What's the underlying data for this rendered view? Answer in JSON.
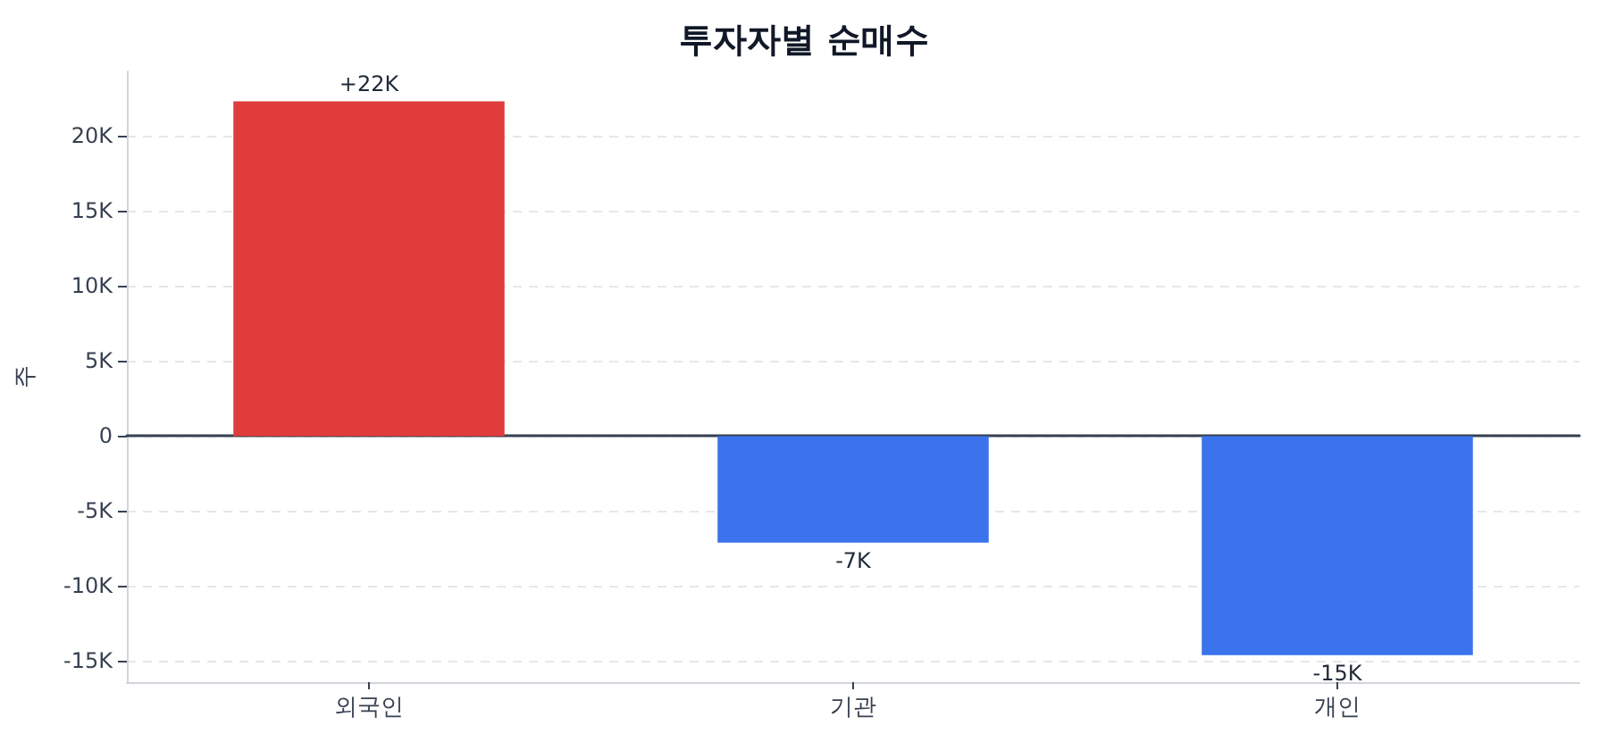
{
  "chart_data": {
    "type": "bar",
    "title": "투자자별 순매수",
    "ylabel": "주",
    "categories": [
      "외국인",
      "기관",
      "개인"
    ],
    "values": [
      22300,
      -7100,
      -14600
    ],
    "colors": [
      "#e03c3c",
      "#3b73ec",
      "#3b73ec"
    ],
    "value_labels": [
      "+22K",
      "-7K",
      "-15K"
    ],
    "ylim": [
      -16400,
      24300
    ],
    "yticks": [
      {
        "value": -15000,
        "label": "-15K"
      },
      {
        "value": -10000,
        "label": "-10K"
      },
      {
        "value": -5000,
        "label": "-5K"
      },
      0,
      {
        "value": 5000,
        "label": "5K"
      },
      {
        "value": 10000,
        "label": "10K"
      },
      {
        "value": 15000,
        "label": "15K"
      },
      {
        "value": 20000,
        "label": "20K"
      }
    ],
    "grid": "y"
  }
}
